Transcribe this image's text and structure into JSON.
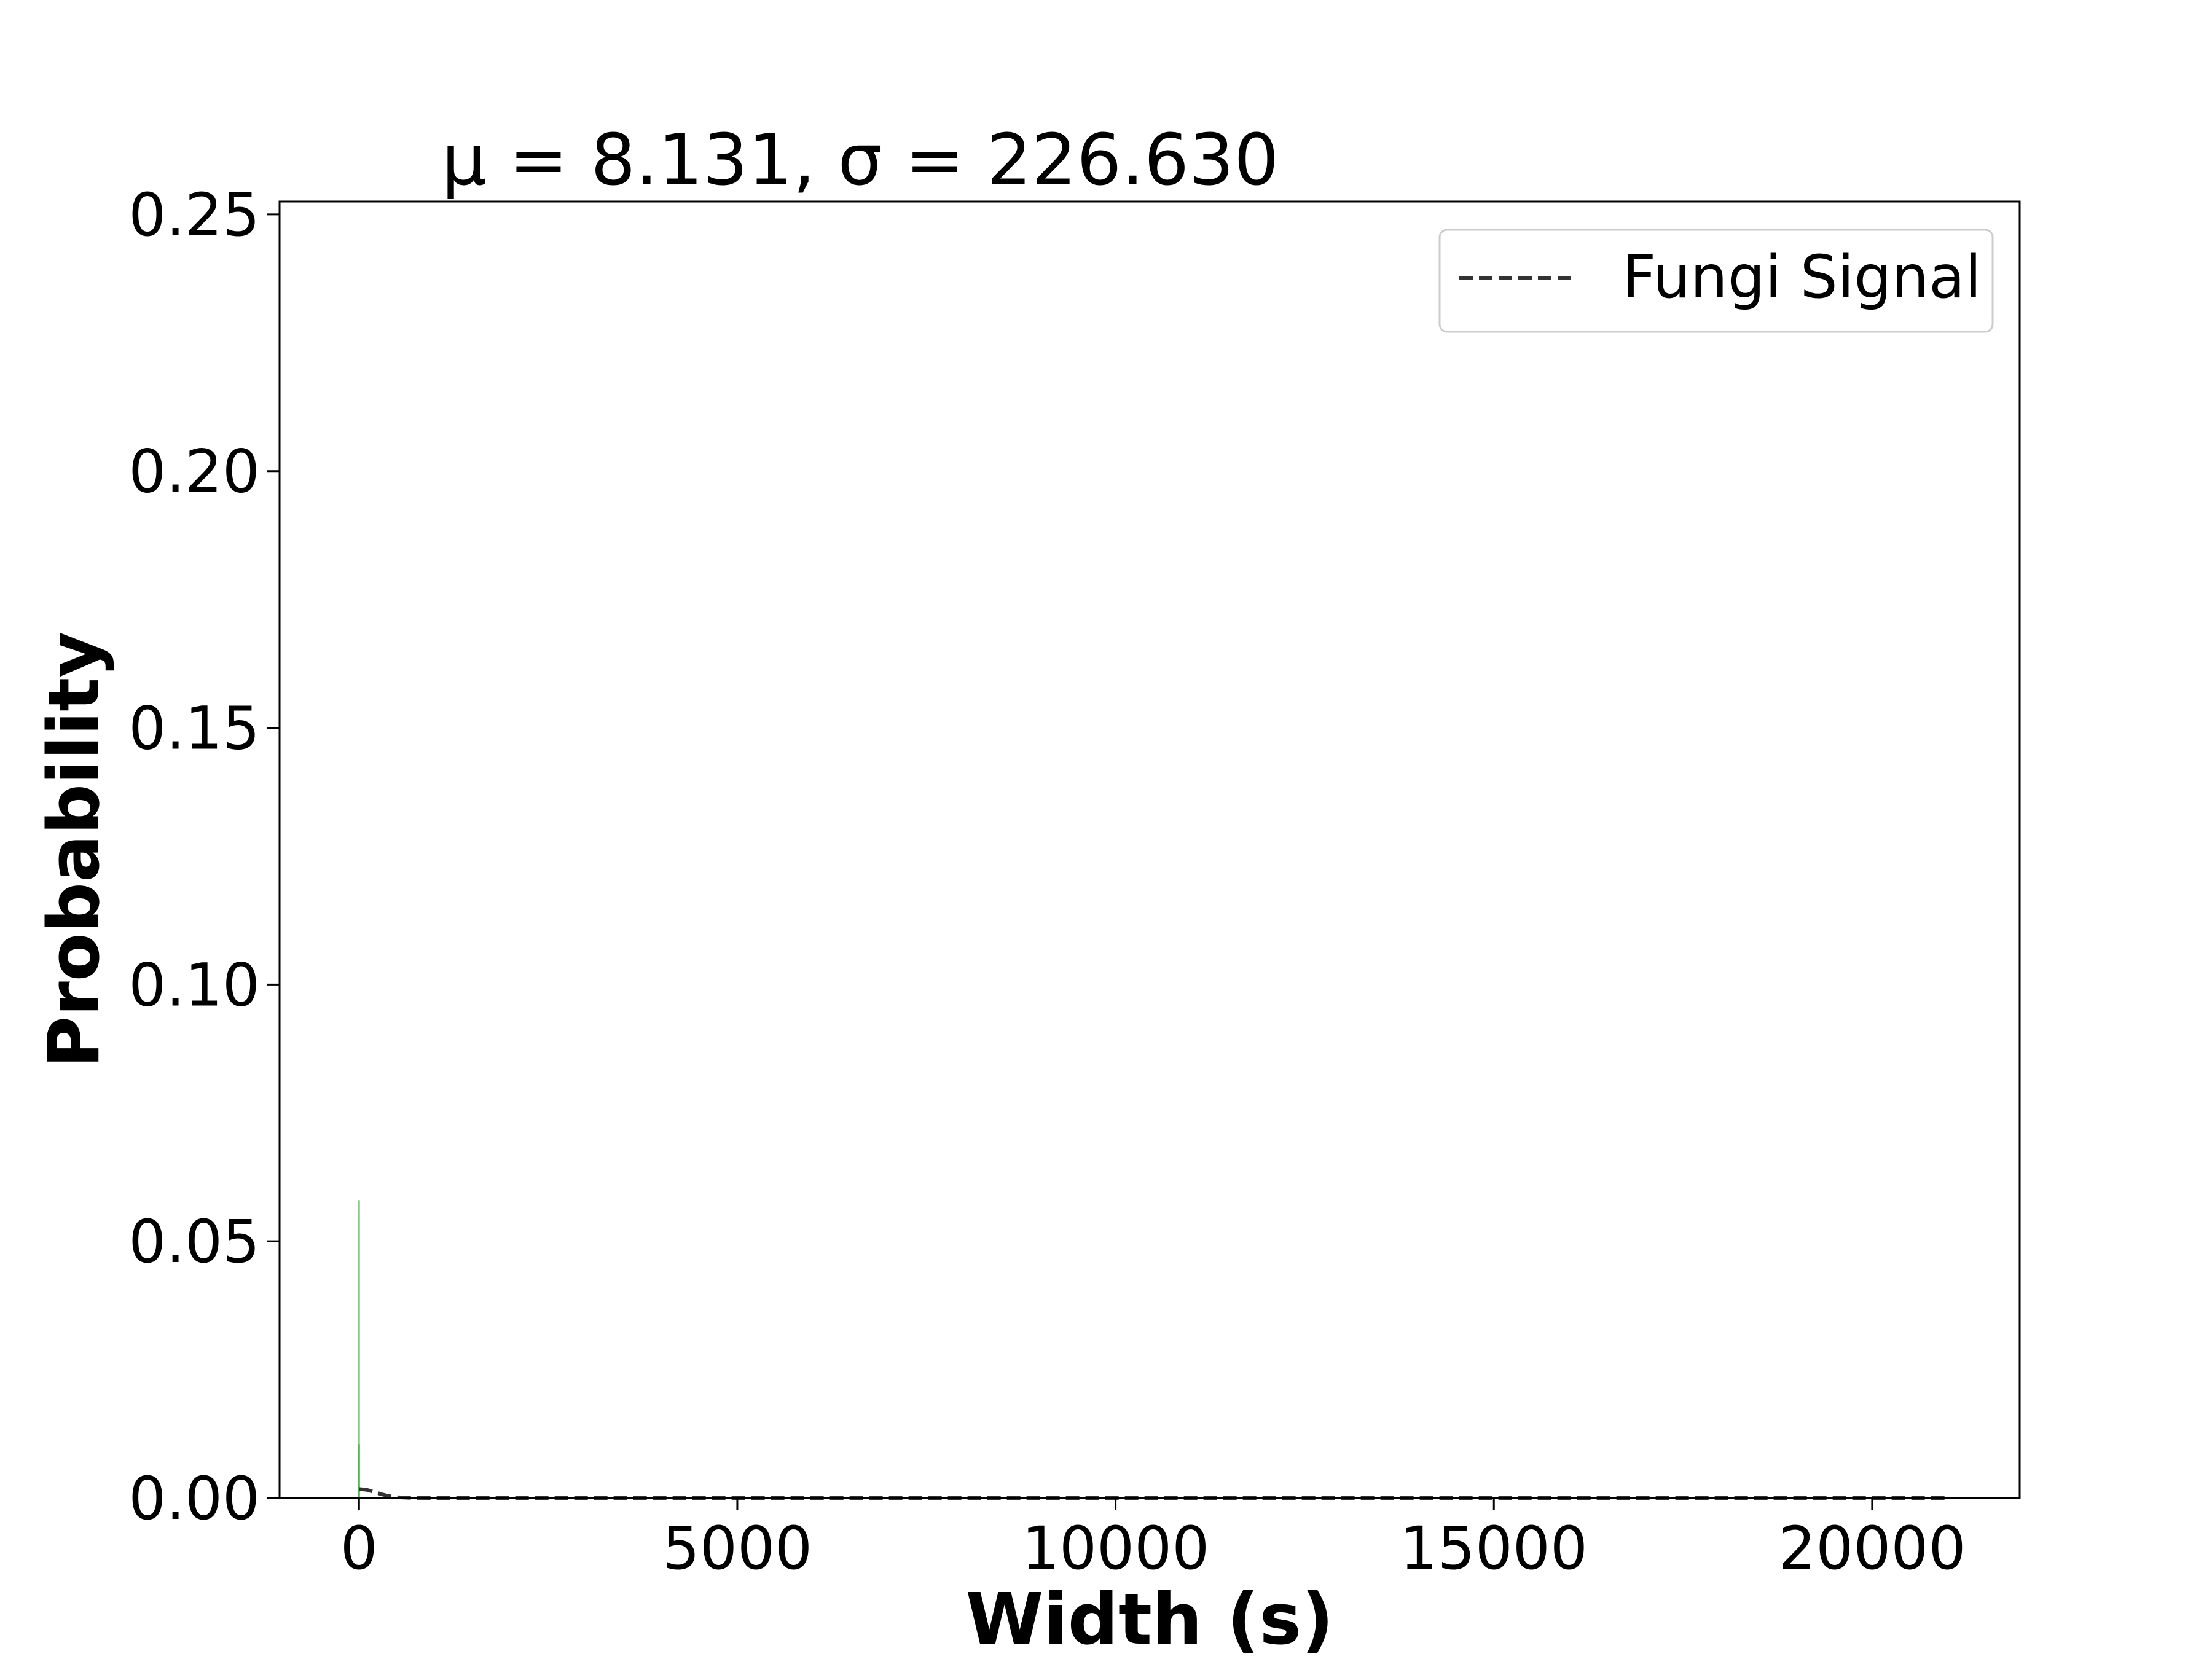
{
  "chart_data": {
    "type": "histogram",
    "title": "μ = 8.131,  σ = 226.630",
    "xlabel": "Width (s)",
    "ylabel": "Probability",
    "xlim": [
      -1050,
      21950
    ],
    "ylim": [
      0,
      0.2525
    ],
    "xticks": [
      0,
      5000,
      10000,
      15000,
      20000
    ],
    "xtick_labels": [
      "0",
      "5000",
      "10000",
      "15000",
      "20000"
    ],
    "yticks": [
      0,
      0.05,
      0.1,
      0.15,
      0.2,
      0.25
    ],
    "ytick_labels": [
      "0.00",
      "0.05",
      "0.10",
      "0.15",
      "0.20",
      "0.25"
    ],
    "grid": false,
    "legend": {
      "position": "top-right",
      "entries": [
        {
          "label": "Fungi Signal",
          "style": "dashed",
          "color": "#333333"
        }
      ]
    },
    "bars": {
      "color": "#2ca02c",
      "x": [
        0,
        0
      ],
      "values": [
        0.058,
        0.0105
      ]
    },
    "fit_line": {
      "name": "Fungi Signal",
      "color": "#333333",
      "style": "dashed",
      "x": [
        0,
        100,
        200,
        300,
        400,
        500,
        700,
        1000,
        2000,
        5000,
        10000,
        15000,
        20000,
        21000
      ],
      "y": [
        0.00176,
        0.0016,
        0.00118,
        0.00072,
        0.00037,
        0.00016,
        2e-05,
        0.0,
        0.0,
        0.0,
        0.0,
        0.0,
        0.0,
        0.0
      ]
    }
  }
}
